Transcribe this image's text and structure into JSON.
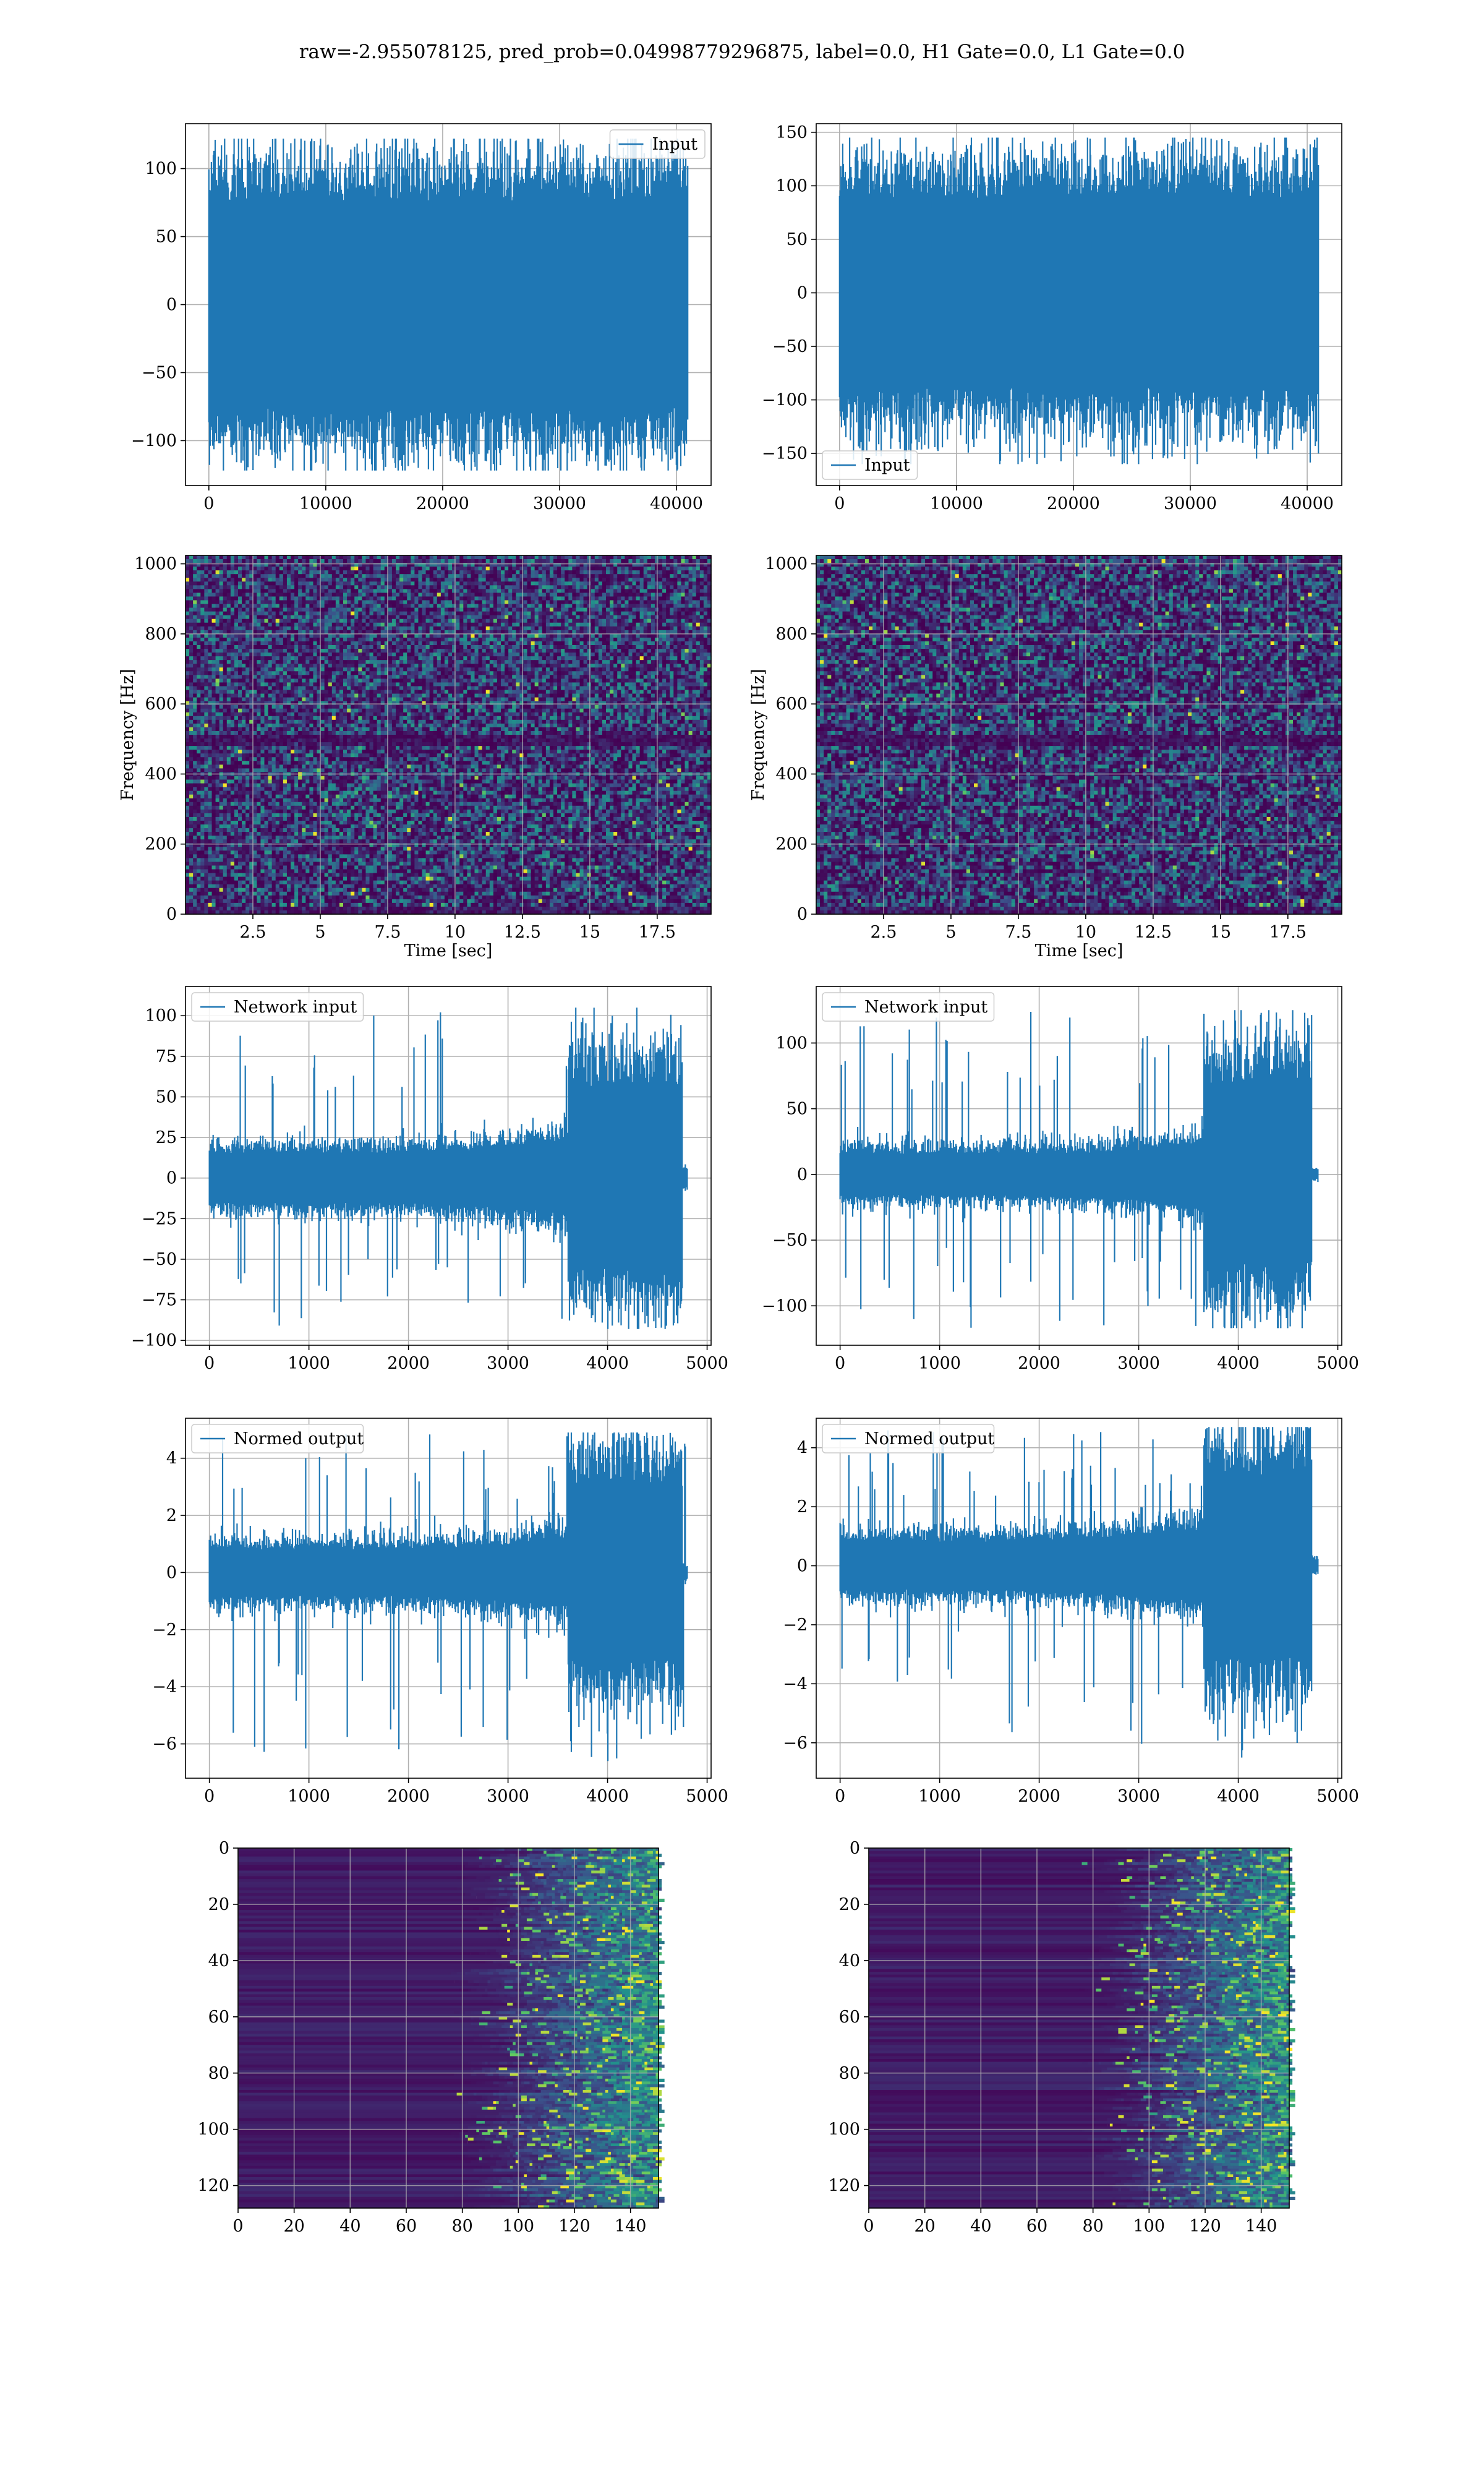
{
  "figure": {
    "title": "raw=-2.955078125, pred_prob=0.04998779296875, label=0.0, H1 Gate=0.0, L1 Gate=0.0"
  },
  "colors": {
    "line": "#1f77b4",
    "grid": "#b0b0b0",
    "viridis_dark": "#440154"
  },
  "chart_data": [
    {
      "id": "h1-input",
      "type": "line",
      "legend": [
        "Input"
      ],
      "legend_loc": "upper right",
      "xlim": [
        -2000,
        42960
      ],
      "ylim": [
        -133,
        133
      ],
      "xticks": [
        0,
        10000,
        20000,
        30000,
        40000
      ],
      "yticks": [
        -100,
        -50,
        0,
        50,
        100
      ],
      "xlabel": "",
      "ylabel": "",
      "series": [
        {
          "n": 40960,
          "start_amp": 75,
          "burst_start": 40960,
          "burst_end": 40960,
          "burst_amp": 75,
          "env_sd": 28,
          "peak_max": 122,
          "peak_min": -122,
          "tail": 0
        }
      ]
    },
    {
      "id": "l1-input",
      "type": "line",
      "legend": [
        "Input"
      ],
      "legend_loc": "lower left",
      "xlim": [
        -2000,
        42960
      ],
      "ylim": [
        -180,
        158
      ],
      "xticks": [
        0,
        10000,
        20000,
        30000,
        40000
      ],
      "yticks": [
        -150,
        -100,
        -50,
        0,
        50,
        100,
        150
      ],
      "xlabel": "",
      "ylabel": "",
      "series": [
        {
          "n": 40960,
          "start_amp": 88,
          "burst_start": 40960,
          "burst_end": 40960,
          "burst_amp": 88,
          "env_sd": 33,
          "peak_max": 145,
          "peak_min": -160,
          "tail": 0
        }
      ]
    },
    {
      "id": "h1-spectrogram",
      "type": "heatmap",
      "xlim": [
        0,
        19.5
      ],
      "ylim": [
        0,
        1024
      ],
      "xticks": [
        2.5,
        5.0,
        7.5,
        10.0,
        12.5,
        15.0,
        17.5
      ],
      "yticks": [
        0,
        200,
        400,
        600,
        800,
        1000
      ],
      "xlabel": "Time [sec]",
      "ylabel": "Frequency [Hz]",
      "dark_band_hz": 500
    },
    {
      "id": "l1-spectrogram",
      "type": "heatmap",
      "xlim": [
        0,
        19.5
      ],
      "ylim": [
        0,
        1024
      ],
      "xticks": [
        2.5,
        5.0,
        7.5,
        10.0,
        12.5,
        15.0,
        17.5
      ],
      "yticks": [
        0,
        200,
        400,
        600,
        800,
        1000
      ],
      "xlabel": "Time [sec]",
      "ylabel": "Frequency [Hz]",
      "dark_band_hz": 500
    },
    {
      "id": "h1-network-input",
      "type": "line",
      "legend": [
        "Network input"
      ],
      "legend_loc": "upper left",
      "xlim": [
        -240,
        5040
      ],
      "ylim": [
        -103,
        118
      ],
      "xticks": [
        0,
        1000,
        2000,
        3000,
        4000,
        5000
      ],
      "yticks": [
        -100,
        -75,
        -50,
        -25,
        0,
        25,
        50,
        75,
        100
      ],
      "xlabel": "",
      "ylabel": "",
      "series": [
        {
          "n": 4800,
          "start_amp": 15,
          "burst_start": 3600,
          "burst_end": 4750,
          "burst_amp": 55,
          "env_sd": 6,
          "peak_max": 105,
          "peak_min": -93,
          "tail": 5
        }
      ]
    },
    {
      "id": "l1-network-input",
      "type": "line",
      "legend": [
        "Network input"
      ],
      "legend_loc": "upper left",
      "xlim": [
        -240,
        5040
      ],
      "ylim": [
        -130,
        143
      ],
      "xticks": [
        0,
        1000,
        2000,
        3000,
        4000,
        5000
      ],
      "yticks": [
        -100,
        -50,
        0,
        50,
        100
      ],
      "xlabel": "",
      "ylabel": "",
      "series": [
        {
          "n": 4800,
          "start_amp": 15,
          "burst_start": 3650,
          "burst_end": 4740,
          "burst_amp": 65,
          "env_sd": 7,
          "peak_max": 125,
          "peak_min": -117,
          "tail": 3
        }
      ]
    },
    {
      "id": "h1-normed-output",
      "type": "line",
      "legend": [
        "Normed output"
      ],
      "legend_loc": "upper left",
      "xlim": [
        -240,
        5040
      ],
      "ylim": [
        -7.2,
        5.4
      ],
      "xticks": [
        0,
        1000,
        2000,
        3000,
        4000,
        5000
      ],
      "yticks": [
        -6,
        -4,
        -2,
        0,
        2,
        4
      ],
      "xlabel": "",
      "ylabel": "",
      "series": [
        {
          "n": 4800,
          "start_amp": 0.8,
          "burst_start": 3600,
          "burst_end": 4750,
          "burst_amp": 3.0,
          "env_sd": 0.35,
          "peak_max": 4.9,
          "peak_min": -6.6,
          "tail": 0.2
        }
      ]
    },
    {
      "id": "l1-normed-output",
      "type": "line",
      "legend": [
        "Normed output"
      ],
      "legend_loc": "upper left",
      "xlim": [
        -240,
        5040
      ],
      "ylim": [
        -7.2,
        5.0
      ],
      "xticks": [
        0,
        1000,
        2000,
        3000,
        4000,
        5000
      ],
      "yticks": [
        -6,
        -4,
        -2,
        0,
        2,
        4
      ],
      "xlabel": "",
      "ylabel": "",
      "series": [
        {
          "n": 4800,
          "start_amp": 0.8,
          "burst_start": 3650,
          "burst_end": 4740,
          "burst_amp": 3.0,
          "env_sd": 0.35,
          "peak_max": 4.7,
          "peak_min": -6.5,
          "tail": 0.2
        }
      ]
    },
    {
      "id": "h1-network-map",
      "type": "heatmap",
      "xlim": [
        0,
        150
      ],
      "ylim": [
        128,
        0
      ],
      "xticks": [
        0,
        20,
        40,
        60,
        80,
        100,
        120,
        140
      ],
      "yticks": [
        0,
        20,
        40,
        60,
        80,
        100,
        120
      ],
      "xlabel": "",
      "ylabel": "",
      "active_from_col": 95
    },
    {
      "id": "l1-network-map",
      "type": "heatmap",
      "xlim": [
        0,
        150
      ],
      "ylim": [
        128,
        0
      ],
      "xticks": [
        0,
        20,
        40,
        60,
        80,
        100,
        120,
        140
      ],
      "yticks": [
        0,
        20,
        40,
        60,
        80,
        100,
        120
      ],
      "xlabel": "",
      "ylabel": "",
      "active_from_col": 95
    }
  ]
}
